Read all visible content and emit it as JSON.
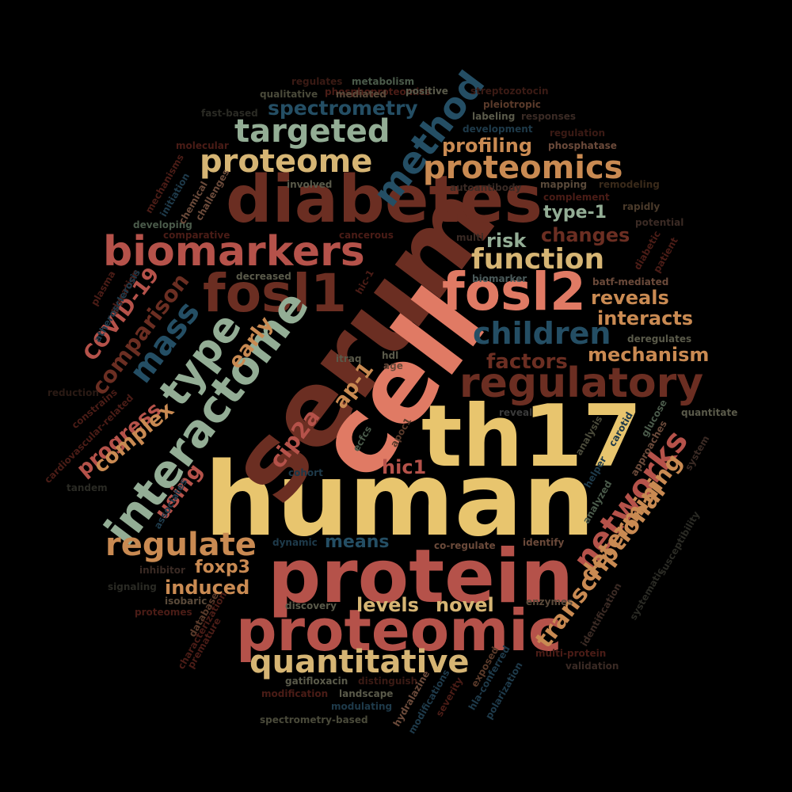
{
  "palette": {
    "background": "#000000",
    "gold": "#e8c56e",
    "brick": "#b5524a",
    "salmon": "#e07a64",
    "brown": "#6b2e22",
    "sage": "#93ad95",
    "teal": "#244e64",
    "orange": "#c98a52",
    "tan": "#d6b574"
  },
  "words": [
    {
      "text": "human",
      "color": "#e8c56e"
    },
    {
      "text": "serum",
      "color": "#6b2e22"
    },
    {
      "text": "cell",
      "color": "#e07a64"
    },
    {
      "text": "th17",
      "color": "#e8c56e"
    },
    {
      "text": "protein",
      "color": "#b5524a"
    },
    {
      "text": "diabetes",
      "color": "#6b2e22"
    },
    {
      "text": "proteomic",
      "color": "#b5524a"
    },
    {
      "text": "fosl1",
      "color": "#6b2e22"
    },
    {
      "text": "fosl2",
      "color": "#e07a64"
    },
    {
      "text": "interactome",
      "color": "#93ad95"
    },
    {
      "text": "biomarkers",
      "color": "#b5524a"
    },
    {
      "text": "regulatory",
      "color": "#6b2e22"
    },
    {
      "text": "type",
      "color": "#93ad95"
    },
    {
      "text": "method",
      "color": "#244e64"
    },
    {
      "text": "proteomics",
      "color": "#c98a52"
    },
    {
      "text": "proteome",
      "color": "#d6b574"
    },
    {
      "text": "targeted",
      "color": "#93ad95"
    },
    {
      "text": "quantitative",
      "color": "#d6b574"
    },
    {
      "text": "regulate",
      "color": "#c98a52"
    },
    {
      "text": "networks",
      "color": "#b5524a"
    },
    {
      "text": "transcriptional",
      "color": "#c98a52"
    },
    {
      "text": "function",
      "color": "#d6b574"
    },
    {
      "text": "children",
      "color": "#244e64"
    },
    {
      "text": "mass",
      "color": "#244e64"
    },
    {
      "text": "determining",
      "color": "#c98a52"
    },
    {
      "text": "spectrometry",
      "color": "#244e64"
    },
    {
      "text": "comparison",
      "color": "#6b2e22"
    },
    {
      "text": "COVID-19",
      "color": "#b5524a"
    },
    {
      "text": "progress",
      "color": "#b5524a"
    },
    {
      "text": "complex",
      "color": "#c98a52"
    },
    {
      "text": "cip2a",
      "color": "#b5524a"
    },
    {
      "text": "early",
      "color": "#c98a52"
    },
    {
      "text": "profiling",
      "color": "#c98a52"
    },
    {
      "text": "changes",
      "color": "#6b2e22"
    },
    {
      "text": "type-1",
      "color": "#93ad95"
    },
    {
      "text": "risk",
      "color": "#93ad95"
    },
    {
      "text": "reveals",
      "color": "#c98a52"
    },
    {
      "text": "interacts",
      "color": "#c98a52"
    },
    {
      "text": "mechanism",
      "color": "#c98a52"
    },
    {
      "text": "factors",
      "color": "#6b2e22"
    },
    {
      "text": "ap-1",
      "color": "#c98a52"
    },
    {
      "text": "hic1",
      "color": "#b5524a"
    },
    {
      "text": "using",
      "color": "#b5524a"
    },
    {
      "text": "means",
      "color": "#244e64"
    },
    {
      "text": "foxp3",
      "color": "#c98a52"
    },
    {
      "text": "induced",
      "color": "#c98a52"
    },
    {
      "text": "levels",
      "color": "#d6b574"
    },
    {
      "text": "novel",
      "color": "#d6b574"
    },
    {
      "text": "phosphoproteomics",
      "color": "#4a1c16"
    },
    {
      "text": "regulates",
      "color": "#3a1a14"
    },
    {
      "text": "metabolism",
      "color": "#4a5a4a"
    },
    {
      "text": "qualitative",
      "color": "#4a4a3a"
    },
    {
      "text": "mediated",
      "color": "#5a4a3a"
    },
    {
      "text": "positive",
      "color": "#5a5a4a"
    },
    {
      "text": "streptozotocin",
      "color": "#3a1a14"
    },
    {
      "text": "pleiotropic",
      "color": "#5a3a2a"
    },
    {
      "text": "labeling",
      "color": "#5a5a4a"
    },
    {
      "text": "responses",
      "color": "#3a2a24"
    },
    {
      "text": "development",
      "color": "#1e3a4a"
    },
    {
      "text": "regulation",
      "color": "#3a1a14"
    },
    {
      "text": "molecular",
      "color": "#4a1c16"
    },
    {
      "text": "phosphatase",
      "color": "#6b4a3a"
    },
    {
      "text": "involved",
      "color": "#5a5a4a"
    },
    {
      "text": "autoantibody",
      "color": "#3a2a24"
    },
    {
      "text": "mapping",
      "color": "#5a4a3a"
    },
    {
      "text": "remodeling",
      "color": "#3a2a1a"
    },
    {
      "text": "complement",
      "color": "#4a1c16"
    },
    {
      "text": "rapidly",
      "color": "#4a3a2a"
    },
    {
      "text": "potential",
      "color": "#3a2a24"
    },
    {
      "text": "developing",
      "color": "#4a5a4a"
    },
    {
      "text": "comparative",
      "color": "#4a1c16"
    },
    {
      "text": "cancerous",
      "color": "#4a1c16"
    },
    {
      "text": "multi",
      "color": "#3a2a24"
    },
    {
      "text": "decreased",
      "color": "#5a5a4a"
    },
    {
      "text": "hic-1",
      "color": "#4a1c16"
    },
    {
      "text": "biomarker",
      "color": "#4a5a5a"
    },
    {
      "text": "batf-mediated",
      "color": "#6b4a3a"
    },
    {
      "text": "deregulates",
      "color": "#5a5a4a"
    },
    {
      "text": "itraq",
      "color": "#5a5a4a"
    },
    {
      "text": "hdl",
      "color": "#5a5a4a"
    },
    {
      "text": "age",
      "color": "#6b4a3a"
    },
    {
      "text": "reduction",
      "color": "#2a1a14"
    },
    {
      "text": "reveal",
      "color": "#3a3a3a"
    },
    {
      "text": "quantitate",
      "color": "#5a5a4a"
    },
    {
      "text": "cohort",
      "color": "#1e3a4a"
    },
    {
      "text": "co-regulate",
      "color": "#6b4a3a"
    },
    {
      "text": "identify",
      "color": "#6b4a3a"
    },
    {
      "text": "dynamic",
      "color": "#1e3a4a"
    },
    {
      "text": "inhibitor",
      "color": "#3a2a24"
    },
    {
      "text": "signaling",
      "color": "#2a2a24"
    },
    {
      "text": "isobaric",
      "color": "#5a4a3a"
    },
    {
      "text": "proteomes",
      "color": "#4a1c16"
    },
    {
      "text": "discovery",
      "color": "#5a5a4a"
    },
    {
      "text": "enzymes",
      "color": "#5a4a3a"
    },
    {
      "text": "multi-protein",
      "color": "#4a1c16"
    },
    {
      "text": "validation",
      "color": "#3a2a24"
    },
    {
      "text": "gatifloxacin",
      "color": "#5a5a4a"
    },
    {
      "text": "distinguish",
      "color": "#3a1a14"
    },
    {
      "text": "modification",
      "color": "#4a1c16"
    },
    {
      "text": "landscape",
      "color": "#5a5a4a"
    },
    {
      "text": "modulating",
      "color": "#1e3a4a"
    },
    {
      "text": "spectrometry-based",
      "color": "#4a4a3a"
    },
    {
      "text": "mechanisms",
      "color": "#4a1c16"
    },
    {
      "text": "initiation",
      "color": "#1e3a4a"
    },
    {
      "text": "chemical",
      "color": "#6b4a3a"
    },
    {
      "text": "challenges",
      "color": "#6b4a3a"
    },
    {
      "text": "plasma",
      "color": "#4a1c16"
    },
    {
      "text": "glycation",
      "color": "#4a1c16"
    },
    {
      "text": "atherosclerosis",
      "color": "#1e3a4a"
    },
    {
      "text": "constrains",
      "color": "#4a1c16"
    },
    {
      "text": "cardiovascular-related",
      "color": "#4a1c16"
    },
    {
      "text": "diabetic",
      "color": "#4a1c16"
    },
    {
      "text": "patient",
      "color": "#4a1c16"
    },
    {
      "text": "ecfcs",
      "color": "#4a5a4a"
    },
    {
      "text": "apoc1",
      "color": "#5a3a2a"
    },
    {
      "text": "analysis",
      "color": "#4a4a3a"
    },
    {
      "text": "carotid",
      "color": "#1e3a4a"
    },
    {
      "text": "glucose",
      "color": "#4a5a4a"
    },
    {
      "text": "approaches",
      "color": "#6b4a3a"
    },
    {
      "text": "helper",
      "color": "#1e3a4a"
    },
    {
      "text": "system",
      "color": "#3a2a24"
    },
    {
      "text": "analyzed",
      "color": "#4a5a4a"
    },
    {
      "text": "susceptibility",
      "color": "#2a2a24"
    },
    {
      "text": "associates",
      "color": "#1e3a4a"
    },
    {
      "text": "database",
      "color": "#5a3a2a"
    },
    {
      "text": "characterization",
      "color": "#4a1c16"
    },
    {
      "text": "premature",
      "color": "#4a1c16"
    },
    {
      "text": "exposed",
      "color": "#5a3a2a"
    },
    {
      "text": "hla-conferred",
      "color": "#1e3a4a"
    },
    {
      "text": "polarization",
      "color": "#1e3a4a"
    },
    {
      "text": "hydralazine",
      "color": "#6b4a3a"
    },
    {
      "text": "modifications",
      "color": "#1e3a4a"
    },
    {
      "text": "severity",
      "color": "#4a1c16"
    },
    {
      "text": "identification",
      "color": "#3a2a24"
    },
    {
      "text": "systematic",
      "color": "#2a2a24"
    },
    {
      "text": "tandem",
      "color": "#2a2a24"
    },
    {
      "text": "fast-based",
      "color": "#2a2a24"
    }
  ]
}
